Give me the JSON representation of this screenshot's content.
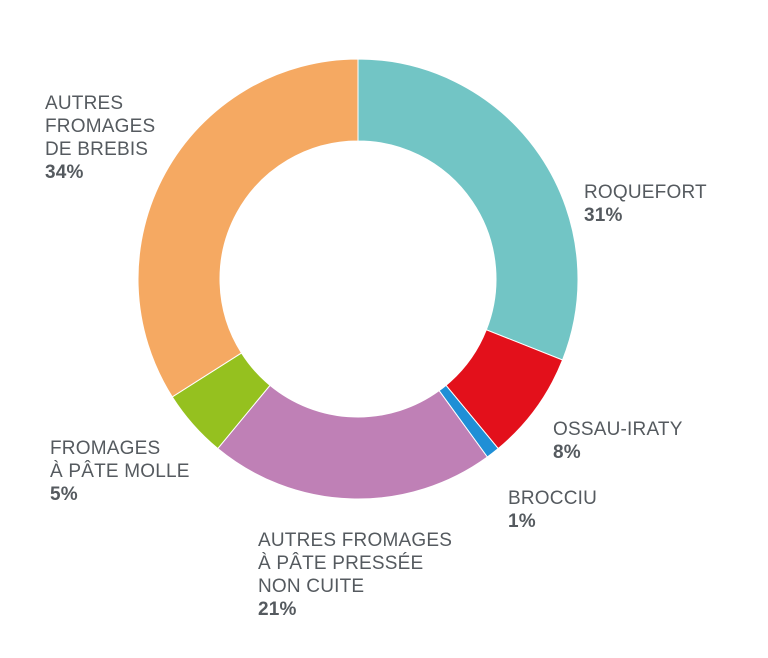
{
  "chart_data": {
    "type": "pie",
    "variant": "donut",
    "slices": [
      {
        "label": "ROQUEFORT",
        "value": 31,
        "value_label": "31%",
        "color": "#72c5c5"
      },
      {
        "label": "OSSAU-IRATY",
        "value": 8,
        "value_label": "8%",
        "color": "#e3101b"
      },
      {
        "label": "BROCCIU",
        "value": 1,
        "value_label": "1%",
        "color": "#1f8fd6"
      },
      {
        "label": "AUTRES FROMAGES\nÀ PÂTE PRESSÉE\nNON CUITE",
        "value": 21,
        "value_label": "21%",
        "color": "#bf80b6"
      },
      {
        "label": "FROMAGES\nÀ PÂTE MOLLE",
        "value": 5,
        "value_label": "5%",
        "color": "#95c11f"
      },
      {
        "label": "AUTRES\nFROMAGES\nDE BREBIS",
        "value": 34,
        "value_label": "34%",
        "color": "#f5a962"
      }
    ],
    "start": "12 o'clock",
    "direction": "clockwise",
    "legend": "none",
    "labels": "outside"
  }
}
